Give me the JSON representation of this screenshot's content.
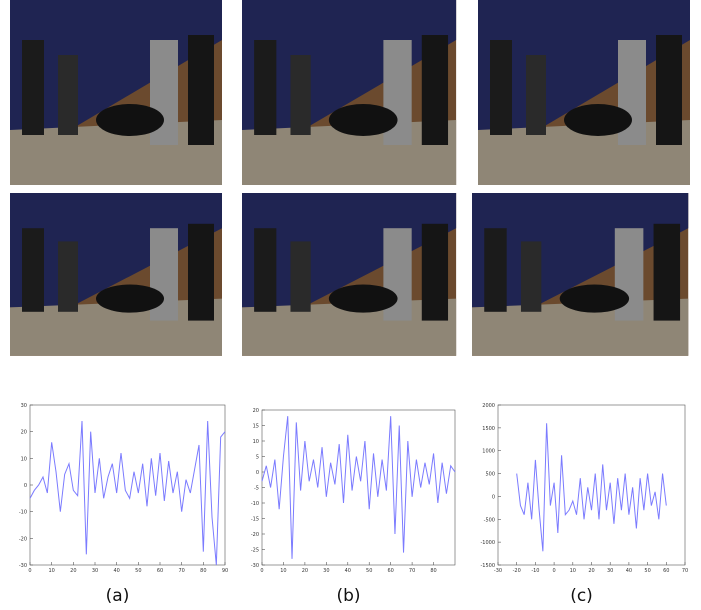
{
  "chart_data": [
    {
      "type": "line",
      "caption": "(a)",
      "color": "#7b7bff",
      "x": [
        0,
        2,
        4,
        6,
        8,
        10,
        12,
        14,
        16,
        18,
        20,
        22,
        24,
        26,
        28,
        30,
        32,
        34,
        36,
        38,
        40,
        42,
        44,
        46,
        48,
        50,
        52,
        54,
        56,
        58,
        60,
        62,
        64,
        66,
        68,
        70,
        72,
        74,
        76,
        78,
        80,
        82,
        84,
        86,
        88,
        90
      ],
      "values": [
        -5,
        -2,
        0,
        3,
        -3,
        16,
        5,
        -10,
        4,
        8,
        -2,
        -4,
        24,
        -26,
        20,
        -3,
        10,
        -5,
        3,
        8,
        -3,
        12,
        -2,
        -5,
        5,
        -3,
        8,
        -8,
        10,
        -4,
        12,
        -6,
        9,
        -3,
        5,
        -10,
        2,
        -3,
        6,
        15,
        -25,
        24,
        -12,
        -30,
        18,
        20
      ],
      "xlim": [
        0,
        90
      ],
      "xticks": [
        0,
        10,
        20,
        30,
        40,
        50,
        60,
        70,
        80,
        90
      ],
      "ylim": [
        -30,
        30
      ],
      "yticks": [
        -30,
        -20,
        -10,
        0,
        10,
        20,
        30
      ]
    },
    {
      "type": "line",
      "caption": "(b)",
      "color": "#7b7bff",
      "x": [
        0,
        2,
        4,
        6,
        8,
        10,
        12,
        14,
        16,
        18,
        20,
        22,
        24,
        26,
        28,
        30,
        32,
        34,
        36,
        38,
        40,
        42,
        44,
        46,
        48,
        50,
        52,
        54,
        56,
        58,
        60,
        62,
        64,
        66,
        68,
        70,
        72,
        74,
        76,
        78,
        80,
        82,
        84,
        86,
        88,
        90
      ],
      "values": [
        -3,
        2,
        -5,
        4,
        -12,
        5,
        18,
        -28,
        16,
        -6,
        10,
        -3,
        4,
        -5,
        8,
        -8,
        3,
        -4,
        9,
        -10,
        12,
        -6,
        5,
        -3,
        10,
        -12,
        6,
        -8,
        4,
        -6,
        18,
        -20,
        15,
        -26,
        10,
        -8,
        4,
        -5,
        3,
        -4,
        6,
        -10,
        3,
        -7,
        2,
        0
      ],
      "xlim": [
        0,
        90
      ],
      "xticks": [
        0,
        10,
        20,
        30,
        40,
        50,
        60,
        70,
        80
      ],
      "ylim": [
        -30,
        20
      ],
      "yticks": [
        -30,
        -25,
        -20,
        -15,
        -10,
        -5,
        0,
        5,
        10,
        15,
        20
      ]
    },
    {
      "type": "line",
      "caption": "(c)",
      "color": "#7b7bff",
      "x": [
        -20,
        -18,
        -16,
        -14,
        -12,
        -10,
        -8,
        -6,
        -4,
        -2,
        0,
        2,
        4,
        6,
        8,
        10,
        12,
        14,
        16,
        18,
        20,
        22,
        24,
        26,
        28,
        30,
        32,
        34,
        36,
        38,
        40,
        42,
        44,
        46,
        48,
        50,
        52,
        54,
        56,
        58,
        60
      ],
      "values": [
        500,
        -200,
        -400,
        300,
        -500,
        800,
        -300,
        -1200,
        1600,
        -200,
        300,
        -800,
        900,
        -400,
        -300,
        -100,
        -400,
        400,
        -500,
        200,
        -300,
        500,
        -500,
        700,
        -300,
        300,
        -600,
        400,
        -300,
        500,
        -400,
        200,
        -700,
        400,
        -300,
        500,
        -200,
        100,
        -500,
        500,
        -200
      ],
      "xlim": [
        -30,
        70
      ],
      "xticks": [
        -30,
        -20,
        -10,
        0,
        10,
        20,
        30,
        40,
        50,
        60,
        70
      ],
      "ylim": [
        -1500,
        2000
      ],
      "yticks": [
        -1500,
        -1000,
        -500,
        0,
        500,
        1000,
        1500,
        2000
      ]
    }
  ]
}
